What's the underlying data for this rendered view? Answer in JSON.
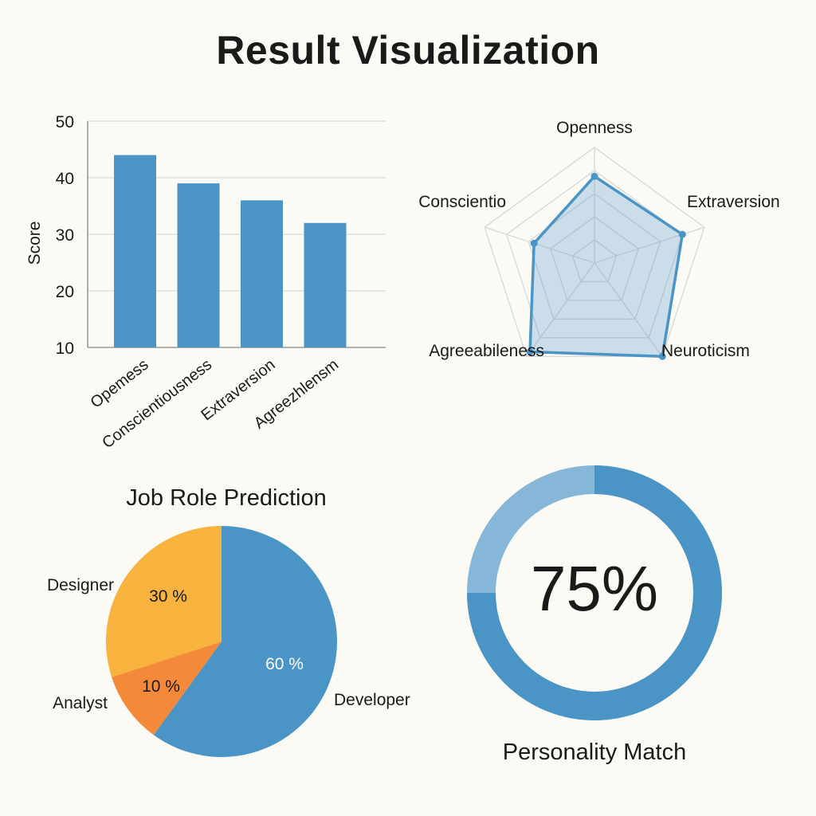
{
  "page": {
    "title": "Result Visualization"
  },
  "colors": {
    "blue": "#4a94c6",
    "light_blue": "#86b6d8",
    "yellow": "#f7b33d",
    "orange": "#f4893a",
    "grid": "#d9d9d9"
  },
  "chart_data": [
    {
      "type": "bar",
      "ylabel": "Score",
      "ylim": [
        10,
        50
      ],
      "yticks": [
        10,
        20,
        30,
        40,
        50
      ],
      "grid": true,
      "categories": [
        "Opemess",
        "Conscientiousness",
        "Extraversion",
        "Agreezhlensm"
      ],
      "values": [
        44,
        39,
        36,
        32
      ]
    },
    {
      "type": "radar",
      "axes": [
        "Openness",
        "Extraversion",
        "Neuroticism",
        "Agreeabileness",
        "Conscientio"
      ],
      "scale_max": 100,
      "values": [
        75,
        80,
        100,
        95,
        55
      ]
    },
    {
      "type": "pie",
      "title": "Job Role Prediction",
      "slices": [
        {
          "label": "Developer",
          "value": 60,
          "pct_label": "60 %"
        },
        {
          "label": "Analyst",
          "value": 10,
          "pct_label": "10 %"
        },
        {
          "label": "Designer",
          "value": 30,
          "pct_label": "30 %"
        }
      ]
    },
    {
      "type": "donut",
      "title": "Personality Match",
      "value": 75,
      "value_label": "75%"
    }
  ]
}
